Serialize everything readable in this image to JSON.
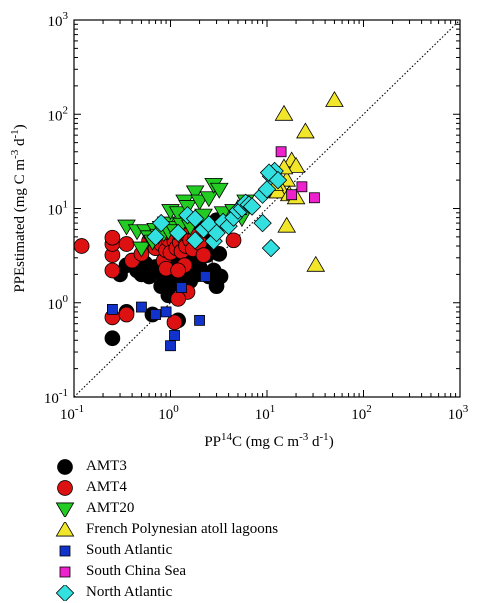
{
  "chart_data": {
    "type": "scatter",
    "title": "",
    "xlabel": {
      "prefix": "PP",
      "sup": "14",
      "main": "C (mg C m",
      "exp1": "-3",
      "mid": " d",
      "exp2": "-1",
      "end": ")"
    },
    "ylabel": {
      "main": "PPEstimated (mg C m",
      "exp1": "-3",
      "mid": " d",
      "exp2": "-1",
      "end": ")"
    },
    "x_scale": "log",
    "y_scale": "log",
    "xlim": [
      0.1,
      1000
    ],
    "ylim": [
      0.1,
      1000
    ],
    "x_ticks": [
      {
        "base": "10",
        "exp": "-1"
      },
      {
        "base": "10",
        "exp": "0"
      },
      {
        "base": "10",
        "exp": "1"
      },
      {
        "base": "10",
        "exp": "2"
      },
      {
        "base": "10",
        "exp": "3"
      }
    ],
    "y_ticks": [
      {
        "base": "10",
        "exp": "-1"
      },
      {
        "base": "10",
        "exp": "0"
      },
      {
        "base": "10",
        "exp": "1"
      },
      {
        "base": "10",
        "exp": "2"
      },
      {
        "base": "10",
        "exp": "3"
      }
    ],
    "one_to_one_line": true,
    "grid": false,
    "legend_position": "below",
    "series": [
      {
        "name": "AMT3",
        "marker": "circle",
        "color": "#000000",
        "points": [
          [
            0.25,
            0.42
          ],
          [
            0.35,
            0.8
          ],
          [
            0.3,
            2.0
          ],
          [
            0.35,
            2.5
          ],
          [
            0.4,
            2.8
          ],
          [
            0.45,
            2.2
          ],
          [
            0.5,
            2.0
          ],
          [
            0.55,
            2.6
          ],
          [
            0.6,
            1.9
          ],
          [
            0.65,
            0.75
          ],
          [
            0.7,
            2.4
          ],
          [
            0.75,
            2.1
          ],
          [
            0.8,
            1.5
          ],
          [
            0.85,
            2.3
          ],
          [
            0.9,
            2.6
          ],
          [
            0.95,
            1.2
          ],
          [
            1.0,
            1.8
          ],
          [
            1.05,
            2.2
          ],
          [
            1.1,
            1.6
          ],
          [
            1.15,
            2.8
          ],
          [
            1.2,
            1.9
          ],
          [
            1.25,
            2.3
          ],
          [
            1.3,
            3.2
          ],
          [
            1.35,
            2.5
          ],
          [
            1.4,
            1.4
          ],
          [
            1.5,
            2.0
          ],
          [
            1.6,
            1.7
          ],
          [
            1.7,
            2.6
          ],
          [
            1.8,
            2.9
          ],
          [
            1.9,
            2.0
          ],
          [
            2.0,
            2.4
          ],
          [
            2.2,
            4.0
          ],
          [
            2.5,
            1.9
          ],
          [
            2.8,
            2.2
          ],
          [
            3.0,
            1.5
          ],
          [
            3.3,
            1.9
          ],
          [
            1.2,
            0.65
          ],
          [
            1.6,
            1.8
          ],
          [
            2.1,
            3.5
          ],
          [
            2.6,
            4.5
          ],
          [
            3.0,
            7.5
          ],
          [
            2.0,
            6.5
          ],
          [
            2.4,
            3.2
          ],
          [
            1.8,
            4.2
          ],
          [
            1.3,
            4.8
          ],
          [
            1.1,
            5.0
          ],
          [
            0.95,
            4.5
          ],
          [
            1.45,
            3.0
          ],
          [
            2.7,
            5.8
          ],
          [
            3.2,
            3.3
          ]
        ]
      },
      {
        "name": "AMT4",
        "marker": "circle",
        "color": "#dd1111",
        "points": [
          [
            0.12,
            4.0
          ],
          [
            0.25,
            0.7
          ],
          [
            0.25,
            2.2
          ],
          [
            0.25,
            3.2
          ],
          [
            0.25,
            4.2
          ],
          [
            0.25,
            4.9
          ],
          [
            0.35,
            0.75
          ],
          [
            0.35,
            4.2
          ],
          [
            0.4,
            2.8
          ],
          [
            0.5,
            3.3
          ],
          [
            0.6,
            4.5
          ],
          [
            0.7,
            3.8
          ],
          [
            0.75,
            5.5
          ],
          [
            0.8,
            4.2
          ],
          [
            0.85,
            2.8
          ],
          [
            0.9,
            3.6
          ],
          [
            0.95,
            4.7
          ],
          [
            1.0,
            3.4
          ],
          [
            1.05,
            5.2
          ],
          [
            1.1,
            4.5
          ],
          [
            1.15,
            3.8
          ],
          [
            1.2,
            5.8
          ],
          [
            1.25,
            4.4
          ],
          [
            1.3,
            3.5
          ],
          [
            1.35,
            5.6
          ],
          [
            1.4,
            4.8
          ],
          [
            1.45,
            4.0
          ],
          [
            1.5,
            5.2
          ],
          [
            1.6,
            4.6
          ],
          [
            1.7,
            3.7
          ],
          [
            1.8,
            5.0
          ],
          [
            2.0,
            4.3
          ],
          [
            1.1,
            0.62
          ],
          [
            1.5,
            1.3
          ],
          [
            1.2,
            1.1
          ],
          [
            1.4,
            2.5
          ],
          [
            2.2,
            3.2
          ],
          [
            0.9,
            2.3
          ],
          [
            1.2,
            2.2
          ],
          [
            4.5,
            4.6
          ]
        ]
      },
      {
        "name": "AMT20",
        "marker": "triangle-down",
        "color": "#22cc22",
        "points": [
          [
            0.35,
            6.5
          ],
          [
            0.45,
            5.8
          ],
          [
            0.5,
            3.8
          ],
          [
            0.55,
            5.8
          ],
          [
            0.6,
            5.0
          ],
          [
            0.65,
            4.5
          ],
          [
            0.7,
            6.0
          ],
          [
            0.75,
            5.2
          ],
          [
            0.8,
            6.3
          ],
          [
            0.85,
            5.5
          ],
          [
            0.9,
            7.0
          ],
          [
            0.95,
            5.8
          ],
          [
            1.0,
            9.5
          ],
          [
            1.05,
            6.3
          ],
          [
            1.1,
            5.8
          ],
          [
            1.2,
            9.0
          ],
          [
            1.3,
            6.8
          ],
          [
            1.4,
            12.0
          ],
          [
            1.5,
            10.5
          ],
          [
            1.6,
            6.5
          ],
          [
            1.8,
            15.0
          ],
          [
            2.0,
            12.0
          ],
          [
            2.2,
            8.5
          ],
          [
            2.5,
            13.0
          ],
          [
            2.8,
            18.0
          ],
          [
            3.2,
            16.0
          ],
          [
            3.5,
            9.0
          ],
          [
            4.5,
            9.5
          ],
          [
            5.5,
            8.0
          ],
          [
            6.0,
            12.0
          ]
        ]
      },
      {
        "name": "French Polynesian atoll lagoons",
        "marker": "triangle-up",
        "color": "#f2e62a",
        "points": [
          [
            15,
            100
          ],
          [
            50,
            140
          ],
          [
            25,
            65
          ],
          [
            18,
            32
          ],
          [
            20,
            28
          ],
          [
            16,
            20
          ],
          [
            15,
            27
          ],
          [
            14,
            16
          ],
          [
            13,
            15
          ],
          [
            17,
            14
          ],
          [
            20,
            13
          ],
          [
            12,
            18
          ],
          [
            16,
            6.5
          ],
          [
            32,
            2.5
          ],
          [
            5.0,
            10.0
          ]
        ]
      },
      {
        "name": "South Atlantic",
        "marker": "square",
        "color": "#1133cc",
        "points": [
          [
            0.25,
            0.85
          ],
          [
            0.5,
            0.9
          ],
          [
            0.9,
            0.8
          ],
          [
            1.0,
            0.35
          ],
          [
            1.1,
            0.45
          ],
          [
            1.3,
            1.45
          ],
          [
            2.0,
            0.65
          ],
          [
            0.7,
            0.75
          ],
          [
            2.3,
            1.9
          ]
        ]
      },
      {
        "name": "South China Sea",
        "marker": "square",
        "color": "#ee22cc",
        "points": [
          [
            14,
            40
          ],
          [
            23,
            17
          ],
          [
            18,
            14
          ],
          [
            31,
            13
          ]
        ]
      },
      {
        "name": "North Atlantic",
        "marker": "diamond",
        "color": "#33e0e0",
        "points": [
          [
            0.8,
            7.0
          ],
          [
            1.5,
            8.5
          ],
          [
            1.8,
            7.8
          ],
          [
            2.2,
            6.0
          ],
          [
            2.5,
            6.8
          ],
          [
            2.8,
            4.5
          ],
          [
            3.0,
            5.5
          ],
          [
            3.5,
            7.2
          ],
          [
            4.0,
            6.5
          ],
          [
            4.5,
            8.0
          ],
          [
            5.0,
            9.5
          ],
          [
            5.5,
            10.0
          ],
          [
            6.0,
            11.5
          ],
          [
            6.5,
            11.0
          ],
          [
            7.0,
            10.5
          ],
          [
            9.0,
            14.0
          ],
          [
            10,
            16
          ],
          [
            11,
            22
          ],
          [
            12,
            25
          ],
          [
            10.5,
            24
          ],
          [
            13,
            20
          ],
          [
            9,
            7
          ],
          [
            11,
            3.8
          ],
          [
            1.2,
            5.5
          ],
          [
            1.8,
            4.6
          ],
          [
            0.7,
            5.0
          ]
        ]
      }
    ]
  }
}
